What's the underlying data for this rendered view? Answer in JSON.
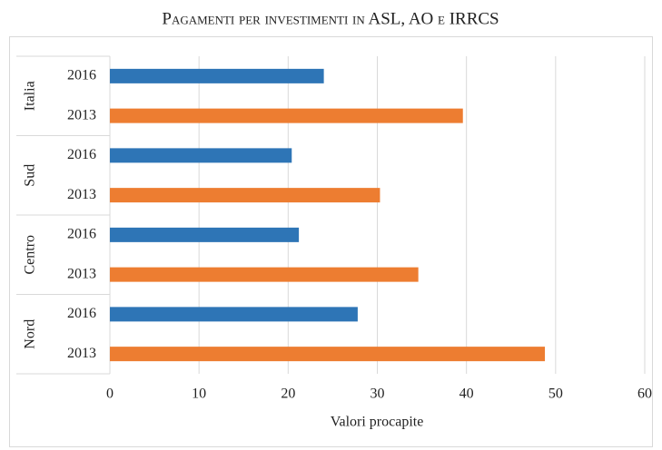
{
  "chart_data": {
    "type": "bar",
    "orientation": "horizontal",
    "title": "Pagamenti per investimenti in ASL, AO e IRRCS",
    "groups": [
      "Italia",
      "Sud",
      "Centro",
      "Nord"
    ],
    "series": [
      {
        "name": "2016",
        "color": "#2e75b6",
        "values": [
          24,
          20.4,
          21.2,
          27.8
        ]
      },
      {
        "name": "2013",
        "color": "#ed7d31",
        "values": [
          39.6,
          30.3,
          34.6,
          48.8
        ]
      }
    ],
    "xlabel": "Valori procapite",
    "xlim": [
      0,
      60
    ],
    "xticks": [
      0,
      10,
      20,
      30,
      40,
      50,
      60
    ],
    "grid": true
  }
}
